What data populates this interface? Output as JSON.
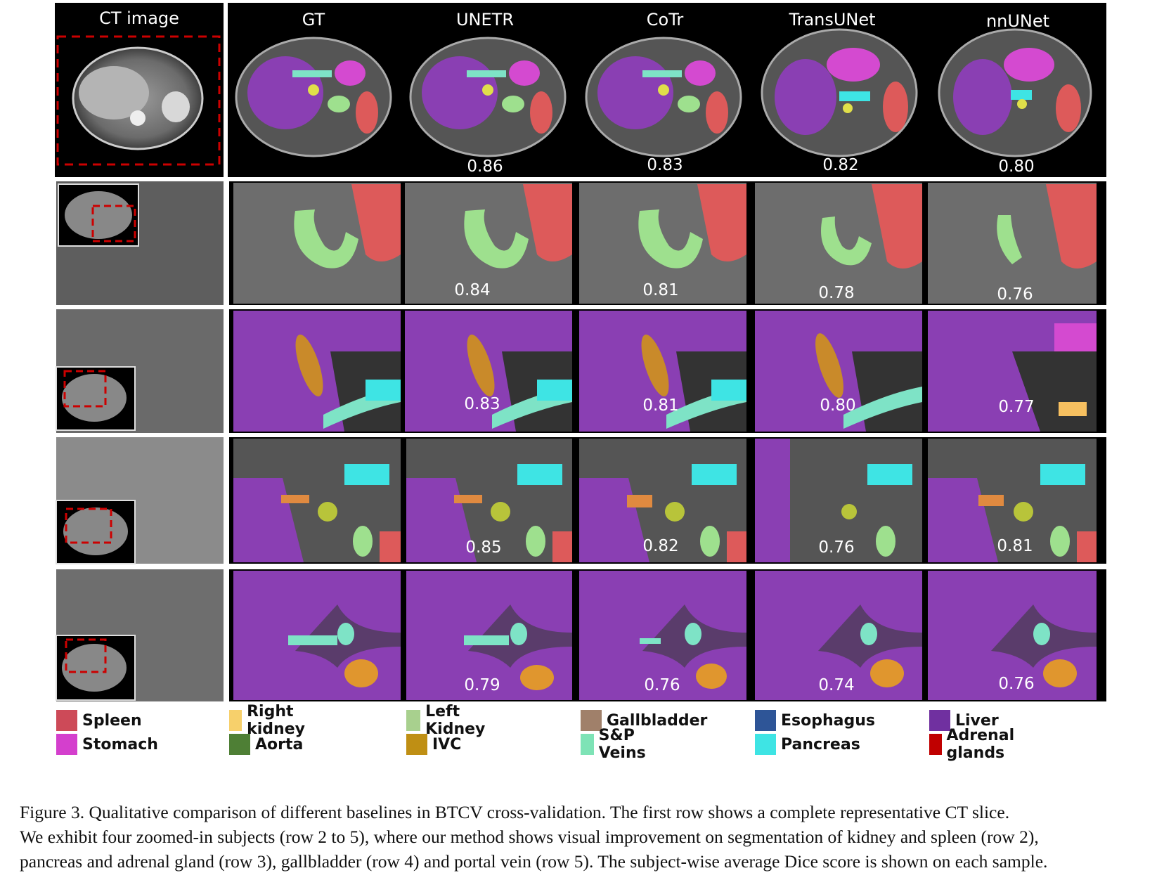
{
  "figure": {
    "column_headers": [
      "CT image",
      "GT",
      "UNETR",
      "CoTr",
      "TransUNet",
      "nnUNet"
    ],
    "rows": [
      {
        "scores": [
          "0.86",
          "0.83",
          "0.82",
          "0.80"
        ]
      },
      {
        "scores": [
          "0.84",
          "0.81",
          "0.78",
          "0.76"
        ]
      },
      {
        "scores": [
          "0.83",
          "0.81",
          "0.80",
          "0.77"
        ]
      },
      {
        "scores": [
          "0.85",
          "0.82",
          "0.76",
          "0.81"
        ]
      },
      {
        "scores": [
          "0.79",
          "0.76",
          "0.74",
          "0.76"
        ]
      }
    ]
  },
  "legend": [
    {
      "label": "Spleen",
      "color": "#cd4a58"
    },
    {
      "label": "Stomach",
      "color": "#d43fcd"
    },
    {
      "label": "Right kidney",
      "color": "#f7d06b"
    },
    {
      "label": "Aorta",
      "color": "#4e7f35"
    },
    {
      "label": "Left Kidney",
      "color": "#a8d08e"
    },
    {
      "label": "IVC",
      "color": "#bf8f14"
    },
    {
      "label": "Gallbladder",
      "color": "#a0806a"
    },
    {
      "label": "S&P Veins",
      "color": "#7ee3b6"
    },
    {
      "label": "Esophagus",
      "color": "#2e5597"
    },
    {
      "label": "Pancreas",
      "color": "#3ee4e4"
    },
    {
      "label": "Liver",
      "color": "#7030a0"
    },
    {
      "label": "Adrenal glands",
      "color": "#c00000"
    }
  ],
  "caption": {
    "lines": [
      "Figure 3. Qualitative comparison of different baselines in BTCV cross-validation. The first row shows a complete representative CT slice.",
      "We exhibit four zoomed-in subjects (row 2 to 5), where our method shows visual improvement on segmentation of kidney and spleen (row 2),",
      "pancreas and adrenal gland (row 3), gallbladder (row 4) and portal vein (row 5). The subject-wise average Dice score is shown on each sample."
    ]
  }
}
